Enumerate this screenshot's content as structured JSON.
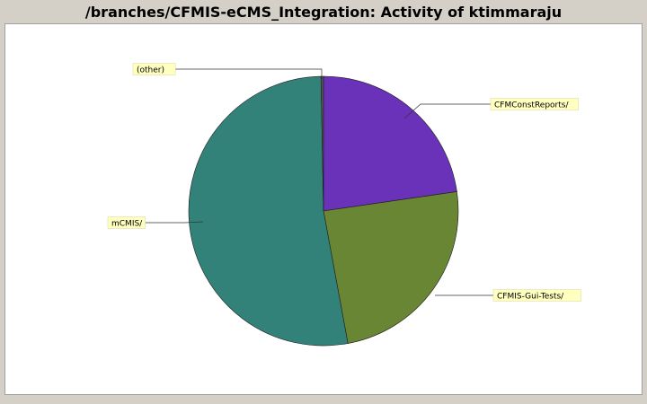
{
  "title": "/branches/CFMIS-eCMS_Integration: Activity of ktimmaraju",
  "chart_data": {
    "type": "pie",
    "slices": [
      {
        "label": "CFMConstReports/",
        "value": 22.7,
        "color": "#6a32b9"
      },
      {
        "label": "CFMIS-Gui-Tests/",
        "value": 24.4,
        "color": "#688634"
      },
      {
        "label": "mCMIS/",
        "value": 52.6,
        "color": "#33827a"
      },
      {
        "label": "(other)",
        "value": 0.3,
        "color": "#555555"
      }
    ],
    "legend": "none",
    "labels": "callouts",
    "start_angle_deg": 0,
    "direction": "clockwise"
  }
}
